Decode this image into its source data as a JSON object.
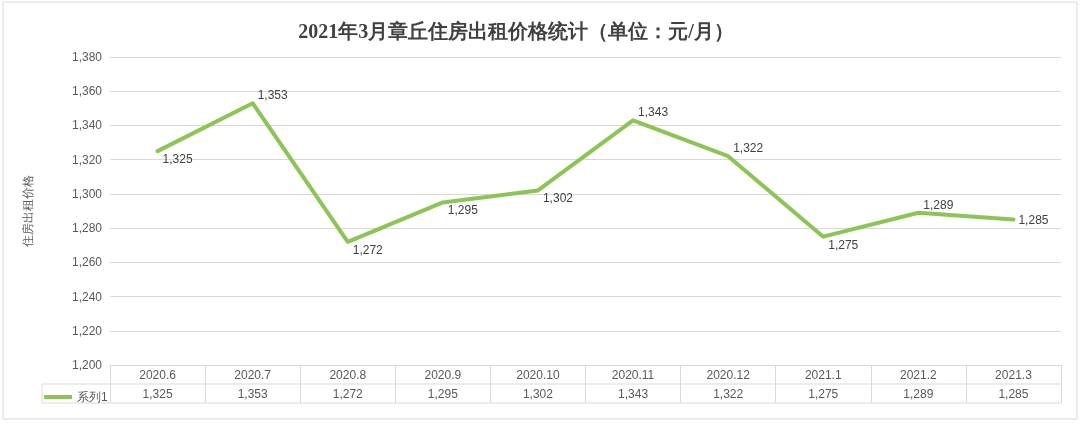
{
  "chart_data": {
    "type": "line",
    "title": "2021年3月章丘住房出租价格统计（单位：元/月）",
    "ylabel": "住房出租价格",
    "categories": [
      "2020.6",
      "2020.7",
      "2020.8",
      "2020.9",
      "2020.10",
      "2020.11",
      "2020.12",
      "2021.1",
      "2021.2",
      "2021.3"
    ],
    "series": [
      {
        "name": "系列1",
        "color": "#8cc456",
        "values": [
          1325,
          1353,
          1272,
          1295,
          1302,
          1343,
          1322,
          1275,
          1289,
          1285
        ],
        "value_labels": [
          "1,325",
          "1,353",
          "1,272",
          "1,295",
          "1,302",
          "1,343",
          "1,322",
          "1,275",
          "1,289",
          "1,285"
        ]
      }
    ],
    "ylim": [
      1200,
      1380
    ],
    "yticks": [
      {
        "value": 1200,
        "label": "1,200"
      },
      {
        "value": 1220,
        "label": "1,220"
      },
      {
        "value": 1240,
        "label": "1,240"
      },
      {
        "value": 1260,
        "label": "1,260"
      },
      {
        "value": 1280,
        "label": "1,280"
      },
      {
        "value": 1300,
        "label": "1,300"
      },
      {
        "value": 1320,
        "label": "1,320"
      },
      {
        "value": 1340,
        "label": "1,340"
      },
      {
        "value": 1360,
        "label": "1,360"
      },
      {
        "value": 1380,
        "label": "1,380"
      }
    ],
    "grid": "y",
    "legend": "bottom left",
    "marker": "none",
    "line_style": "solid"
  }
}
